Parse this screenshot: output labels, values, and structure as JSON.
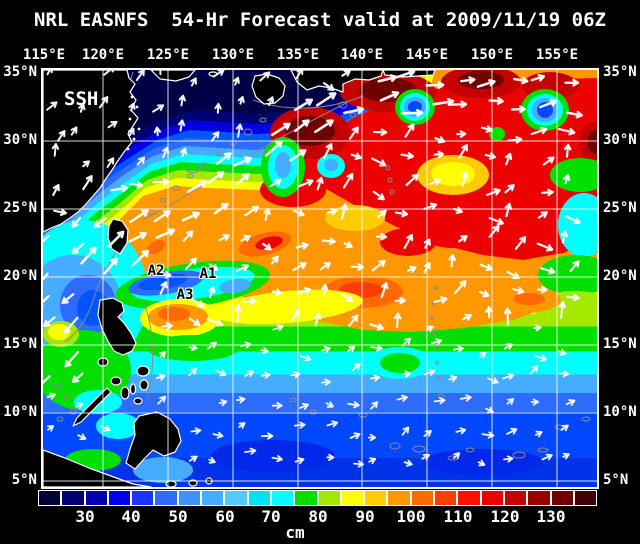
{
  "title": "NRL EASNFS  54-Hr Forecast valid at 2009/11/19 06Z",
  "map": {
    "field_label": "SSH",
    "stations": [
      "A1",
      "A2",
      "A3"
    ]
  },
  "axes": {
    "lon": [
      "115°E",
      "120°E",
      "125°E",
      "130°E",
      "135°E",
      "140°E",
      "145°E",
      "150°E",
      "155°E"
    ],
    "lat": [
      "35°N",
      "30°N",
      "25°N",
      "20°N",
      "15°N",
      "10°N",
      "5°N"
    ]
  },
  "colorbar": {
    "unit": "cm",
    "ticks": [
      "30",
      "40",
      "50",
      "60",
      "70",
      "80",
      "90",
      "100",
      "110",
      "120",
      "130"
    ],
    "colors": [
      "#000038",
      "#000074",
      "#0000B0",
      "#0000EC",
      "#1A35FF",
      "#2E6BFF",
      "#3D93FF",
      "#46ACFF",
      "#55C8FF",
      "#00E2F2",
      "#00FFFF",
      "#00DF00",
      "#A4E800",
      "#FFFF00",
      "#FFCC00",
      "#FF9800",
      "#FF6A00",
      "#FF3D00",
      "#FF1000",
      "#ED0000",
      "#C40000",
      "#9A0000",
      "#700000",
      "#430000"
    ]
  },
  "colors": {
    "background": "#000000",
    "grid": "#FFFFFF",
    "coastline": "#FFFFFF",
    "land": "#000000",
    "bathymetry": "#8A8A8A"
  }
}
